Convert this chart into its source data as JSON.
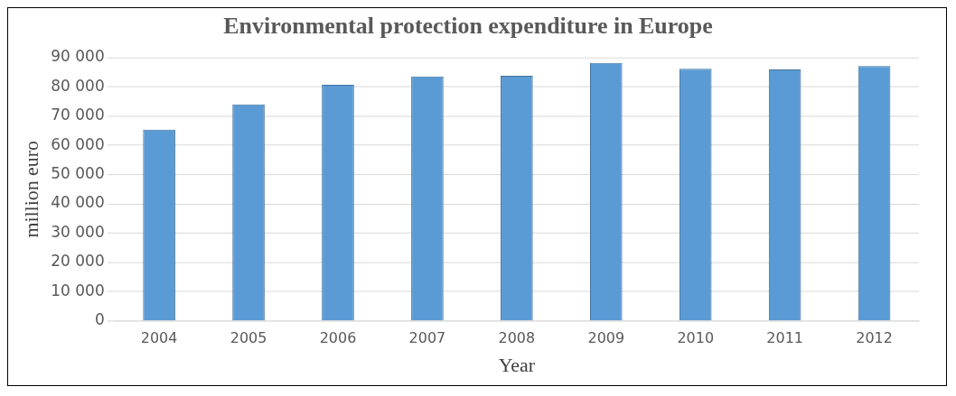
{
  "chart_data": {
    "type": "bar",
    "title": "Environmental protection expenditure in Europe",
    "xlabel": "Year",
    "ylabel": "million euro",
    "categories": [
      "2004",
      "2005",
      "2006",
      "2007",
      "2008",
      "2009",
      "2010",
      "2011",
      "2012"
    ],
    "values": [
      65400,
      74000,
      80700,
      83600,
      83800,
      88200,
      86200,
      86000,
      87100
    ],
    "color": "#5b9bd5",
    "ylim": [
      0,
      90000
    ],
    "yticks": [
      {
        "value": 0,
        "label": "0"
      },
      {
        "value": 10000,
        "label": "10 000"
      },
      {
        "value": 20000,
        "label": "20 000"
      },
      {
        "value": 30000,
        "label": "30 000"
      },
      {
        "value": 40000,
        "label": "40 000"
      },
      {
        "value": 50000,
        "label": "50 000"
      },
      {
        "value": 60000,
        "label": "60 000"
      },
      {
        "value": 70000,
        "label": "70 000"
      },
      {
        "value": 80000,
        "label": "80 000"
      },
      {
        "value": 90000,
        "label": "90 000"
      }
    ],
    "grid": "y"
  }
}
